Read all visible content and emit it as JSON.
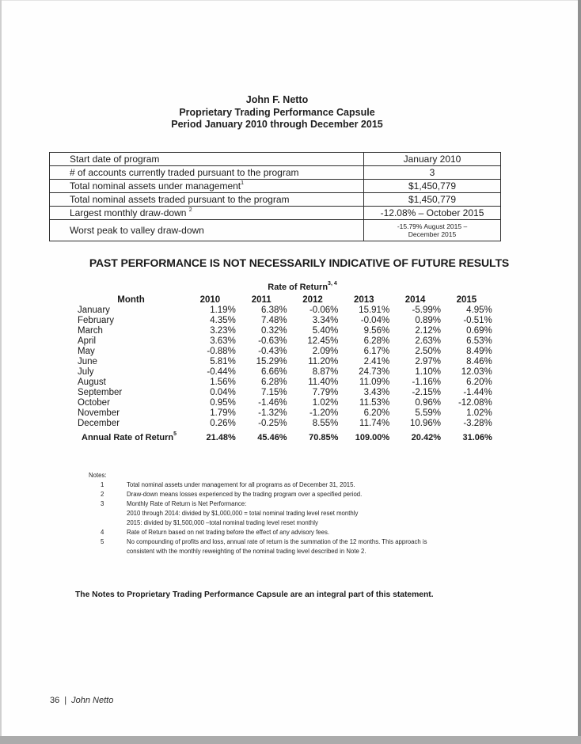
{
  "document": {
    "title_lines": [
      "John F. Netto",
      "Proprietary Trading Performance Capsule",
      "Period January 2010 through December 2015"
    ],
    "disclaimer": "PAST PERFORMANCE IS NOT NECESSARILY INDICATIVE OF FUTURE RESULTS",
    "statement": "The Notes to Proprietary Trading Performance Capsule are an integral part of this statement.",
    "footer": {
      "page_number": "36",
      "separator": "|",
      "author": "John Netto"
    }
  },
  "info_table": {
    "rows": [
      {
        "label": "Start date of program",
        "sup": "",
        "value_lines": [
          "January 2010"
        ]
      },
      {
        "label": "# of accounts currently traded pursuant to the program",
        "sup": "",
        "value_lines": [
          "3"
        ]
      },
      {
        "label": "Total nominal assets under management",
        "sup": "1",
        "value_lines": [
          "$1,450,779"
        ]
      },
      {
        "label": "Total nominal assets traded pursuant to the program",
        "sup": "",
        "value_lines": [
          "$1,450,779"
        ]
      },
      {
        "label": "Largest monthly draw-down ",
        "sup": "2",
        "value_lines": [
          "-12.08% – October 2015"
        ]
      },
      {
        "label": "Worst peak to valley draw-down",
        "sup": "",
        "value_lines": [
          "-15.79% August 2015 –",
          "December 2015"
        ]
      }
    ]
  },
  "returns_table": {
    "title": "Rate of Return",
    "title_sup": "3, 4",
    "month_header": "Month",
    "years": [
      "2010",
      "2011",
      "2012",
      "2013",
      "2014",
      "2015"
    ],
    "rows": [
      {
        "month": "January",
        "values": [
          "1.19%",
          "6.38%",
          "-0.06%",
          "15.91%",
          "-5.99%",
          "4.95%"
        ]
      },
      {
        "month": "February",
        "values": [
          "4.35%",
          "7.48%",
          "3.34%",
          "-0.04%",
          "0.89%",
          "-0.51%"
        ]
      },
      {
        "month": "March",
        "values": [
          "3.23%",
          "0.32%",
          "5.40%",
          "9.56%",
          "2.12%",
          "0.69%"
        ]
      },
      {
        "month": "April",
        "values": [
          "3.63%",
          "-0.63%",
          "12.45%",
          "6.28%",
          "2.63%",
          "6.53%"
        ]
      },
      {
        "month": "May",
        "values": [
          "-0.88%",
          "-0.43%",
          "2.09%",
          "6.17%",
          "2.50%",
          "8.49%"
        ]
      },
      {
        "month": "June",
        "values": [
          "5.81%",
          "15.29%",
          "11.20%",
          "2.41%",
          "2.97%",
          "8.46%"
        ]
      },
      {
        "month": "July",
        "values": [
          "-0.44%",
          "6.66%",
          "8.87%",
          "24.73%",
          "1.10%",
          "12.03%"
        ]
      },
      {
        "month": "August",
        "values": [
          "1.56%",
          "6.28%",
          "11.40%",
          "11.09%",
          "-1.16%",
          "6.20%"
        ]
      },
      {
        "month": "September",
        "values": [
          "0.04%",
          "7.15%",
          "7.79%",
          "3.43%",
          "-2.15%",
          "-1.44%"
        ]
      },
      {
        "month": "October",
        "values": [
          "0.95%",
          "-1.46%",
          "1.02%",
          "11.53%",
          "0.96%",
          "-12.08%"
        ]
      },
      {
        "month": "November",
        "values": [
          "1.79%",
          "-1.32%",
          "-1.20%",
          "6.20%",
          "5.59%",
          "1.02%"
        ]
      },
      {
        "month": "December",
        "values": [
          "0.26%",
          "-0.25%",
          "8.55%",
          "11.74%",
          "10.96%",
          "-3.28%"
        ]
      }
    ],
    "annual": {
      "label": "Annual Rate of Return",
      "sup": "5",
      "values": [
        "21.48%",
        "45.46%",
        "70.85%",
        "109.00%",
        "20.42%",
        "31.06%"
      ]
    }
  },
  "notes": {
    "heading": "Notes:",
    "items": [
      {
        "num": "1",
        "lines": [
          "Total nominal assets under management for all programs as of December 31, 2015."
        ]
      },
      {
        "num": "2",
        "lines": [
          "Draw-down means losses experienced by the trading program over a specified period."
        ]
      },
      {
        "num": "3",
        "lines": [
          "Monthly Rate of Return is Net Performance:",
          "2010 through 2014: divided by $1,000,000 = total nominal trading level reset monthly",
          "2015: divided by $1,500,000 –total nominal trading level reset monthly"
        ]
      },
      {
        "num": "4",
        "lines": [
          "Rate of Return based on net trading before the effect of any advisory fees."
        ]
      },
      {
        "num": "5",
        "lines": [
          "No compounding of profits and loss, annual rate of return is the summation of the 12 months.  This approach is",
          "consistent with the monthly reweighting of the nominal trading level described in Note 2."
        ]
      }
    ]
  }
}
